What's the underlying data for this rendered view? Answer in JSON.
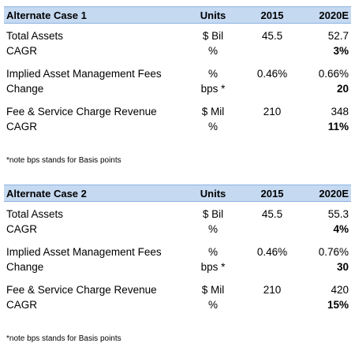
{
  "header": {
    "units": "Units",
    "y1": "2015",
    "y2": "2020E"
  },
  "cases": [
    {
      "title": "Alternate Case 1",
      "rows": [
        {
          "label": "Total Assets",
          "unit": "$ Bil",
          "v2015": "45.5",
          "v2020": "52.7",
          "bold": false
        },
        {
          "label": "CAGR",
          "unit": "%",
          "v2015": "",
          "v2020": "3%",
          "bold": true
        },
        {
          "label": "Implied Asset Management Fees",
          "unit": "%",
          "v2015": "0.46%",
          "v2020": "0.66%",
          "bold": false
        },
        {
          "label": "Change",
          "unit": "bps *",
          "v2015": "",
          "v2020": "20",
          "bold": true
        },
        {
          "label": "Fee & Service Charge Revenue",
          "unit": "$ Mil",
          "v2015": "210",
          "v2020": "348",
          "bold": false
        },
        {
          "label": "CAGR",
          "unit": "%",
          "v2015": "",
          "v2020": "11%",
          "bold": true
        }
      ],
      "note": "*note bps stands for Basis points"
    },
    {
      "title": "Alternate Case 2",
      "rows": [
        {
          "label": "Total Assets",
          "unit": "$ Bil",
          "v2015": "45.5",
          "v2020": "55.3",
          "bold": false
        },
        {
          "label": "CAGR",
          "unit": "%",
          "v2015": "",
          "v2020": "4%",
          "bold": true
        },
        {
          "label": "Implied Asset Management Fees",
          "unit": "%",
          "v2015": "0.46%",
          "v2020": "0.76%",
          "bold": false
        },
        {
          "label": "Change",
          "unit": "bps *",
          "v2015": "",
          "v2020": "30",
          "bold": true
        },
        {
          "label": "Fee & Service Charge Revenue",
          "unit": "$ Mil",
          "v2015": "210",
          "v2020": "420",
          "bold": false
        },
        {
          "label": "CAGR",
          "unit": "%",
          "v2015": "",
          "v2020": "15%",
          "bold": true
        }
      ],
      "note": "*note bps stands for Basis points"
    }
  ]
}
